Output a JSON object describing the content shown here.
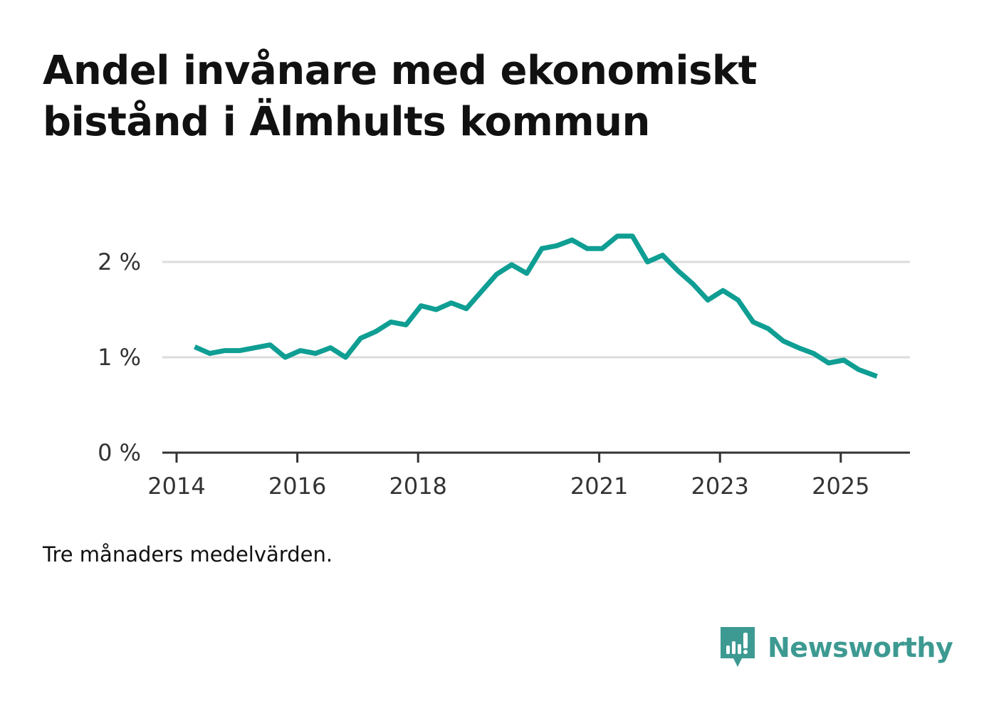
{
  "title_lines": [
    "Andel invånare med ekonomiskt",
    "bistånd i Älmhults kommun"
  ],
  "note": "Tre månaders medelvärden.",
  "brand": {
    "name": "Newsworthy",
    "icon": "newsworthy-logo-icon"
  },
  "colors": {
    "line": "#0f9e93",
    "grid": "#dcdcdc",
    "axis": "#333333",
    "brand": "#3d9a92",
    "text": "#111111"
  },
  "chart_data": {
    "type": "line",
    "title": "Andel invånare med ekonomiskt bistånd i Älmhults kommun",
    "xlabel": "",
    "ylabel": "",
    "xlim": [
      2014.0,
      2026.15
    ],
    "ylim": [
      0,
      2.5
    ],
    "y_ticks": [
      {
        "value": 0,
        "label": "0 %"
      },
      {
        "value": 1,
        "label": "1 %"
      },
      {
        "value": 2,
        "label": "2 %"
      }
    ],
    "x_ticks": [
      {
        "value": 2014,
        "label": "2014"
      },
      {
        "value": 2016,
        "label": "2016"
      },
      {
        "value": 2018,
        "label": "2018"
      },
      {
        "value": 2021,
        "label": "2021"
      },
      {
        "value": 2023,
        "label": "2023"
      },
      {
        "value": 2025,
        "label": "2025"
      }
    ],
    "grid": true,
    "series": [
      {
        "name": "Andel invånare med ekonomiskt bistånd",
        "x": [
          2014.3,
          2014.55,
          2014.8,
          2015.05,
          2015.3,
          2015.55,
          2015.8,
          2016.05,
          2016.3,
          2016.55,
          2016.8,
          2017.05,
          2017.3,
          2017.55,
          2017.8,
          2018.05,
          2018.3,
          2018.55,
          2018.8,
          2019.05,
          2019.3,
          2019.55,
          2019.8,
          2020.05,
          2020.3,
          2020.55,
          2020.8,
          2021.05,
          2021.3,
          2021.55,
          2021.8,
          2022.05,
          2022.3,
          2022.55,
          2022.8,
          2023.05,
          2023.3,
          2023.55,
          2023.8,
          2024.05,
          2024.3,
          2024.55,
          2024.8,
          2025.05,
          2025.3,
          2025.6
        ],
        "values": [
          1.11,
          1.04,
          1.07,
          1.07,
          1.1,
          1.13,
          1.0,
          1.07,
          1.04,
          1.1,
          1.0,
          1.2,
          1.27,
          1.37,
          1.34,
          1.54,
          1.5,
          1.57,
          1.51,
          1.69,
          1.87,
          1.97,
          1.88,
          2.14,
          2.17,
          2.23,
          2.14,
          2.14,
          2.27,
          2.27,
          2.0,
          2.07,
          1.91,
          1.77,
          1.6,
          1.7,
          1.6,
          1.37,
          1.3,
          1.17,
          1.1,
          1.04,
          0.94,
          0.97,
          0.87,
          0.8
        ]
      }
    ]
  }
}
